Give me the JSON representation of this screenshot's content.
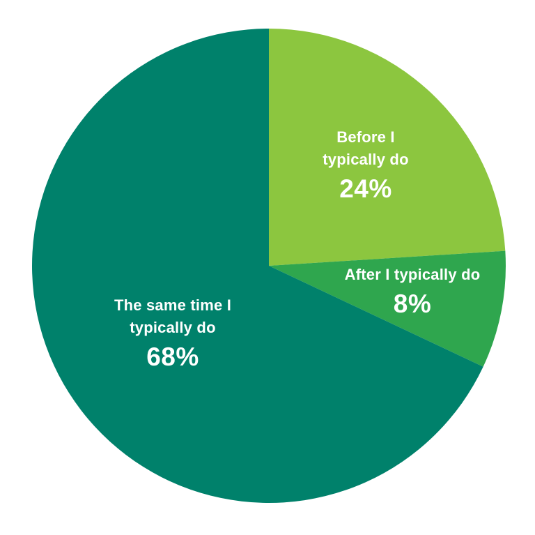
{
  "chart_data": {
    "type": "pie",
    "title": "",
    "legend": "none",
    "labels_inside": true,
    "label_color": "#FFFFFF",
    "background_color": "#FFFFFF",
    "start_angle_deg": 0,
    "direction": "clockwise",
    "unit": "%",
    "categories": [
      "Before I typically do",
      "After I typically do",
      "The same time I typically do"
    ],
    "values": [
      24,
      8,
      68
    ],
    "slices": [
      {
        "label": "Before I typically do",
        "label_lines": [
          "Before I",
          "typically do"
        ],
        "value": 24,
        "value_display": "24%",
        "color": "#8CC63F"
      },
      {
        "label": "After I typically do",
        "label_lines": [
          "After I typically do"
        ],
        "value": 8,
        "value_display": "8%",
        "color": "#2FA64E"
      },
      {
        "label": "The same time I typically do",
        "label_lines": [
          "The same time I",
          "typically do"
        ],
        "value": 68,
        "value_display": "68%",
        "color": "#00816B"
      }
    ]
  }
}
